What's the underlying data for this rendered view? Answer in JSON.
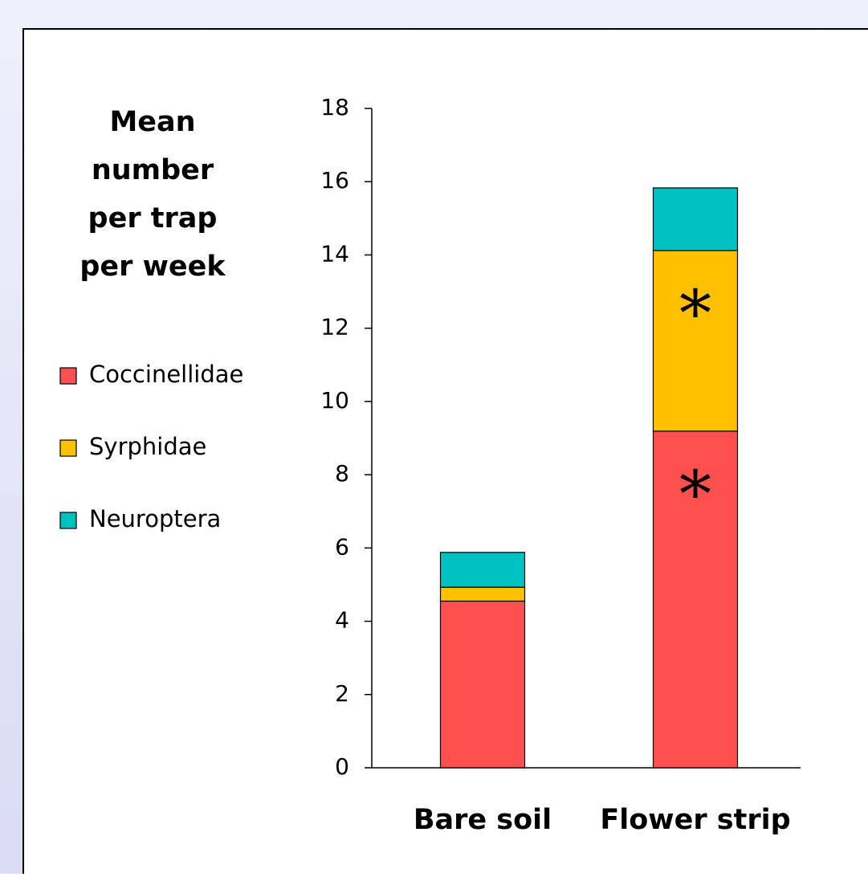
{
  "chart_data": {
    "type": "stacked_bar",
    "ylabel": "Mean number per trap per week",
    "categories": [
      "Bare soil",
      "Flower strip"
    ],
    "series": [
      {
        "name": "Coccinellidae",
        "color": "#ff5050",
        "values": [
          4.55,
          9.19
        ]
      },
      {
        "name": "Syrphidae",
        "color": "#ffc000",
        "values": [
          0.38,
          4.93
        ]
      },
      {
        "name": "Neuroptera",
        "color": "#00c0c0",
        "values": [
          0.95,
          1.71
        ]
      }
    ],
    "annotations": [
      {
        "text": "*",
        "series": 0,
        "category": 1
      },
      {
        "text": "*",
        "series": 1,
        "category": 1
      }
    ],
    "ylim": [
      0,
      18
    ],
    "yticks": [
      0,
      2,
      4,
      6,
      8,
      10,
      12,
      14,
      16,
      18
    ],
    "grid": false,
    "legend": "left"
  }
}
